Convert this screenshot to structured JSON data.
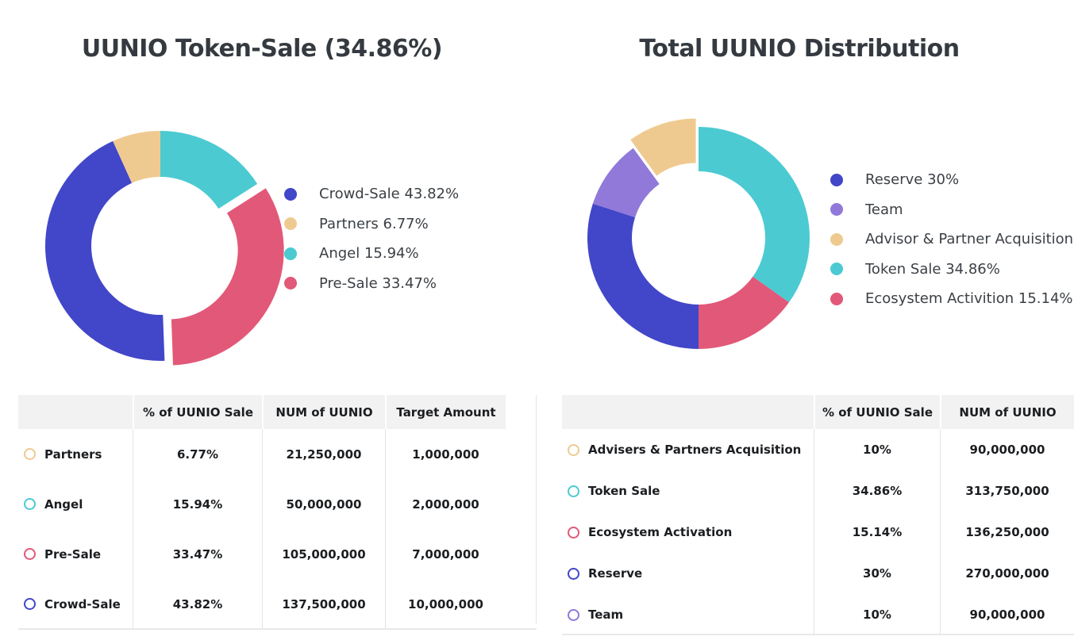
{
  "palette": {
    "blue": "#4246c8",
    "teal": "#4ccad2",
    "tan": "#efca90",
    "pink": "#e25878",
    "purple": "#9179da"
  },
  "left": {
    "title": "UUNIO Token-Sale (34.86%)",
    "legend": [
      {
        "label": "Crowd-Sale 43.82%",
        "color": "#4246c8",
        "icon": "circle-swatch"
      },
      {
        "label": "Partners 6.77%",
        "color": "#efca90",
        "icon": "circle-swatch"
      },
      {
        "label": "Angel 15.94%",
        "color": "#4ccad2",
        "icon": "circle-swatch"
      },
      {
        "label": "Pre-Sale 33.47%",
        "color": "#e25878",
        "icon": "circle-swatch"
      }
    ],
    "donut": {
      "r_out": 145,
      "r_in": 87,
      "explode": 12,
      "slices": [
        {
          "label": "Angel",
          "pct": 15.94,
          "color": "#4ccad2",
          "exploded": false
        },
        {
          "label": "Pre-Sale",
          "pct": 33.47,
          "color": "#e25878",
          "exploded": true
        },
        {
          "label": "Crowd-Sale",
          "pct": 43.82,
          "color": "#4246c8",
          "exploded": false
        },
        {
          "label": "Partners",
          "pct": 6.77,
          "color": "#efca90",
          "exploded": false
        }
      ]
    },
    "table": {
      "headers": [
        "",
        "% of UUNIO Sale",
        "NUM of UUNIO",
        "Target Amount"
      ],
      "rows": [
        {
          "label": "Partners",
          "marker_color": "#efca90",
          "cells": [
            "6.77%",
            "21,250,000",
            "1,000,000"
          ]
        },
        {
          "label": "Angel",
          "marker_color": "#4ccad2",
          "cells": [
            "15.94%",
            "50,000,000",
            "2,000,000"
          ]
        },
        {
          "label": "Pre-Sale",
          "marker_color": "#e25878",
          "cells": [
            "33.47%",
            "105,000,000",
            "7,000,000"
          ]
        },
        {
          "label": "Crowd-Sale",
          "marker_color": "#4246c8",
          "cells": [
            "43.82%",
            "137,500,000",
            "10,000,000"
          ]
        }
      ]
    }
  },
  "right": {
    "title": "Total UUNIO Distribution",
    "legend": [
      {
        "label": "Reserve 30%",
        "color": "#4246c8",
        "icon": "circle-swatch"
      },
      {
        "label": "Team",
        "color": "#9179da",
        "icon": "circle-swatch"
      },
      {
        "label": "Advisor & Partner Acquisition",
        "color": "#efca90",
        "icon": "circle-swatch"
      },
      {
        "label": "Token Sale 34.86%",
        "color": "#4ccad2",
        "icon": "circle-swatch"
      },
      {
        "label": "Ecosystem Activition 15.14%",
        "color": "#e25878",
        "icon": "circle-swatch"
      }
    ],
    "donut": {
      "r_out": 140,
      "r_in": 84,
      "explode": 11,
      "slices": [
        {
          "label": "Token Sale",
          "pct": 34.86,
          "color": "#4ccad2",
          "exploded": false
        },
        {
          "label": "Ecosystem Activition",
          "pct": 15.14,
          "color": "#e25878",
          "exploded": false
        },
        {
          "label": "Reserve",
          "pct": 30,
          "color": "#4246c8",
          "exploded": false
        },
        {
          "label": "Team",
          "pct": 10,
          "color": "#9179da",
          "exploded": false
        },
        {
          "label": "Advisor & Partner Acquisition",
          "pct": 10,
          "color": "#efca90",
          "exploded": true
        }
      ]
    },
    "table": {
      "headers": [
        "",
        "% of UUNIO Sale",
        "NUM of UUNIO"
      ],
      "rows": [
        {
          "label": "Advisers & Partners Acquisition",
          "marker_color": "#efca90",
          "cells": [
            "10%",
            "90,000,000"
          ]
        },
        {
          "label": "Token Sale",
          "marker_color": "#4ccad2",
          "cells": [
            "34.86%",
            "313,750,000"
          ]
        },
        {
          "label": "Ecosystem Activation",
          "marker_color": "#e25878",
          "cells": [
            "15.14%",
            "136,250,000"
          ]
        },
        {
          "label": "Reserve",
          "marker_color": "#4246c8",
          "cells": [
            "30%",
            "270,000,000"
          ]
        },
        {
          "label": "Team",
          "marker_color": "#9179da",
          "cells": [
            "10%",
            "90,000,000"
          ]
        }
      ]
    }
  },
  "chart_data": [
    {
      "type": "pie",
      "donut": true,
      "title": "UUNIO Token-Sale (34.86%)",
      "categories": [
        "Crowd-Sale",
        "Partners",
        "Angel",
        "Pre-Sale"
      ],
      "values": [
        43.82,
        6.77,
        15.94,
        33.47
      ],
      "unit": "%",
      "colors": [
        "#4246c8",
        "#efca90",
        "#4ccad2",
        "#e25878"
      ],
      "legend_position": "right",
      "exploded_slice": "Pre-Sale",
      "start_angle_deg": 0,
      "direction": "clockwise",
      "draw_order_from_top": [
        "Angel",
        "Pre-Sale",
        "Crowd-Sale",
        "Partners"
      ]
    },
    {
      "type": "pie",
      "donut": true,
      "title": "Total UUNIO Distribution",
      "categories": [
        "Reserve",
        "Team",
        "Advisor & Partner Acquisition",
        "Token Sale",
        "Ecosystem Activition"
      ],
      "values": [
        30,
        10,
        10,
        34.86,
        15.14
      ],
      "unit": "%",
      "colors": [
        "#4246c8",
        "#9179da",
        "#efca90",
        "#4ccad2",
        "#e25878"
      ],
      "legend_position": "right",
      "exploded_slice": "Advisor & Partner Acquisition",
      "start_angle_deg": 0,
      "direction": "clockwise",
      "draw_order_from_top": [
        "Token Sale",
        "Ecosystem Activition",
        "Reserve",
        "Team",
        "Advisor & Partner Acquisition"
      ]
    },
    {
      "type": "table",
      "title": "UUNIO Token-Sale breakdown",
      "columns": [
        "",
        "% of UUNIO Sale",
        "NUM of UUNIO",
        "Target Amount"
      ],
      "rows": [
        [
          "Partners",
          "6.77%",
          "21,250,000",
          "1,000,000"
        ],
        [
          "Angel",
          "15.94%",
          "50,000,000",
          "2,000,000"
        ],
        [
          "Pre-Sale",
          "33.47%",
          "105,000,000",
          "7,000,000"
        ],
        [
          "Crowd-Sale",
          "43.82%",
          "137,500,000",
          "10,000,000"
        ]
      ]
    },
    {
      "type": "table",
      "title": "Total UUNIO Distribution breakdown",
      "columns": [
        "",
        "% of UUNIO Sale",
        "NUM of UUNIO"
      ],
      "rows": [
        [
          "Advisers & Partners Acquisition",
          "10%",
          "90,000,000"
        ],
        [
          "Token Sale",
          "34.86%",
          "313,750,000"
        ],
        [
          "Ecosystem Activation",
          "15.14%",
          "136,250,000"
        ],
        [
          "Reserve",
          "30%",
          "270,000,000"
        ],
        [
          "Team",
          "10%",
          "90,000,000"
        ]
      ]
    }
  ]
}
